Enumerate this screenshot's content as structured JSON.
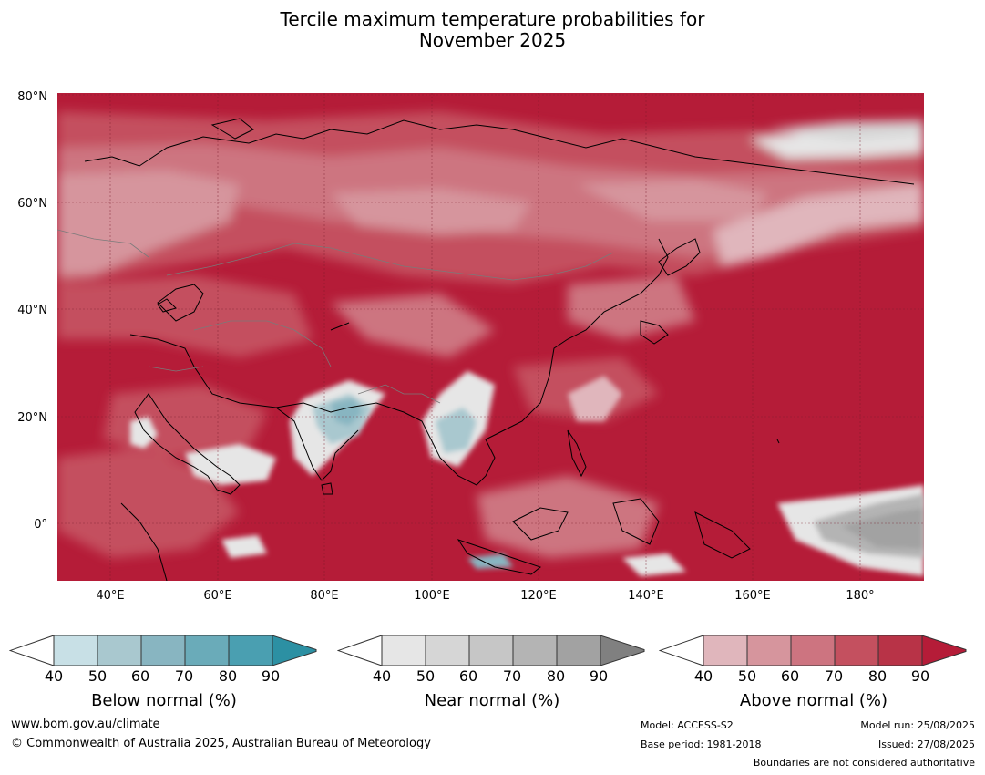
{
  "title": {
    "line1": "Tercile maximum temperature probabilities for",
    "line2": "November 2025"
  },
  "map": {
    "lat_labels": [
      "80°N",
      "60°N",
      "40°N",
      "20°N",
      "0°"
    ],
    "lon_labels": [
      "40°E",
      "60°E",
      "80°E",
      "100°E",
      "120°E",
      "140°E",
      "160°E",
      "180°"
    ],
    "lat_range": [
      -10,
      80
    ],
    "lon_range": [
      30,
      192
    ]
  },
  "colorbars": {
    "ticks": [
      "40",
      "50",
      "60",
      "70",
      "80",
      "90"
    ],
    "below": {
      "label": "Below normal (%)",
      "colors": [
        "#ffffff",
        "#c8e0e6",
        "#a9c8cf",
        "#88b5c1",
        "#6aabb9",
        "#4a9fb1",
        "#2c90a3"
      ]
    },
    "near": {
      "label": "Near normal (%)",
      "colors": [
        "#ffffff",
        "#e6e6e6",
        "#d6d6d6",
        "#c6c6c6",
        "#b4b4b4",
        "#a2a2a2",
        "#808080"
      ]
    },
    "above": {
      "label": "Above normal (%)",
      "colors": [
        "#ffffff",
        "#e0b6bc",
        "#d6959d",
        "#cd7480",
        "#c4505f",
        "#b83347",
        "#b51c38"
      ]
    }
  },
  "footer": {
    "website": "www.bom.gov.au/climate",
    "copyright": "© Commonwealth of Australia 2025, Australian Bureau of Meteorology",
    "model": "Model: ACCESS-S2",
    "base_period": "Base period: 1981-2018",
    "model_run": "Model run: 25/08/2025",
    "issued": "Issued: 27/08/2025",
    "disclaimer": "Boundaries are not considered authoritative"
  }
}
